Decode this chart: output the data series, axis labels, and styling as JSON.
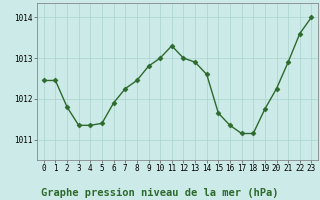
{
  "x": [
    0,
    1,
    2,
    3,
    4,
    5,
    6,
    7,
    8,
    9,
    10,
    11,
    12,
    13,
    14,
    15,
    16,
    17,
    18,
    19,
    20,
    21,
    22,
    23
  ],
  "y": [
    1012.45,
    1012.45,
    1011.8,
    1011.35,
    1011.35,
    1011.4,
    1011.9,
    1012.25,
    1012.45,
    1012.8,
    1013.0,
    1013.3,
    1013.0,
    1012.9,
    1012.6,
    1011.65,
    1011.35,
    1011.15,
    1011.15,
    1011.75,
    1012.25,
    1012.9,
    1013.6,
    1014.0
  ],
  "line_color": "#2d6a2d",
  "marker": "D",
  "marker_size": 2.5,
  "bg_color": "#cceae7",
  "grid_color": "#aad4d0",
  "title": "Graphe pression niveau de la mer (hPa)",
  "ylim": [
    1010.5,
    1014.35
  ],
  "yticks": [
    1011,
    1012,
    1013,
    1014
  ],
  "xticks": [
    0,
    1,
    2,
    3,
    4,
    5,
    6,
    7,
    8,
    9,
    10,
    11,
    12,
    13,
    14,
    15,
    16,
    17,
    18,
    19,
    20,
    21,
    22,
    23
  ],
  "tick_fontsize": 5.5,
  "title_fontsize": 7.5,
  "lw": 1.0
}
